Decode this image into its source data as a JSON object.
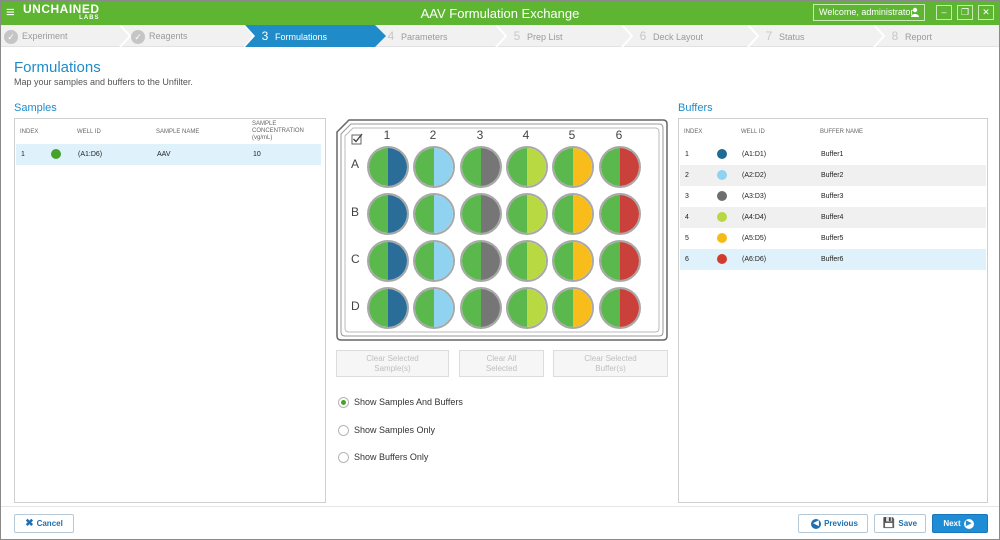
{
  "app": {
    "brand": "UNCHAINED",
    "brand_sub": "LABS",
    "window_title": "AAV Formulation Exchange",
    "welcome": "Welcome, administrator",
    "accent": "#5db532"
  },
  "steps": [
    {
      "num": "",
      "label": "Experiment",
      "state": "done"
    },
    {
      "num": "",
      "label": "Reagents",
      "state": "done"
    },
    {
      "num": "3",
      "label": "Formulations",
      "state": "active"
    },
    {
      "num": "4",
      "label": "Parameters",
      "state": "todo"
    },
    {
      "num": "5",
      "label": "Prep List",
      "state": "todo"
    },
    {
      "num": "6",
      "label": "Deck Layout",
      "state": "todo"
    },
    {
      "num": "7",
      "label": "Status",
      "state": "todo"
    },
    {
      "num": "8",
      "label": "Report",
      "state": "todo"
    }
  ],
  "header": {
    "title": "Formulations",
    "subtitle": "Map your samples and buffers to the Unfilter."
  },
  "samples": {
    "title": "Samples",
    "headers": {
      "index": "INDEX",
      "well": "WELL ID",
      "name": "SAMPLE NAME",
      "conc1": "SAMPLE",
      "conc2": "CONCENTRATION",
      "conc3": "(vg/mL)"
    },
    "rows": [
      {
        "index": "1",
        "color": "#46a229",
        "well": "(A1:D6)",
        "name": "AAV",
        "conc": "10"
      }
    ]
  },
  "buffers": {
    "title": "Buffers",
    "headers": {
      "index": "INDEX",
      "well": "WELL ID",
      "name": "BUFFER NAME"
    },
    "rows": [
      {
        "index": "1",
        "color": "#1e6b96",
        "well": "(A1:D1)",
        "name": "Buffer1"
      },
      {
        "index": "2",
        "color": "#8fd3f0",
        "well": "(A2:D2)",
        "name": "Buffer2"
      },
      {
        "index": "3",
        "color": "#6e6e6e",
        "well": "(A3:D3)",
        "name": "Buffer3"
      },
      {
        "index": "4",
        "color": "#b7d843",
        "well": "(A4:D4)",
        "name": "Buffer4"
      },
      {
        "index": "5",
        "color": "#f7bb17",
        "well": "(A5:D5)",
        "name": "Buffer5"
      },
      {
        "index": "6",
        "color": "#d23c2c",
        "well": "(A6:D6)",
        "name": "Buffer6"
      }
    ]
  },
  "plate": {
    "columns": [
      "1",
      "2",
      "3",
      "4",
      "5",
      "6"
    ],
    "rows": [
      "A",
      "B",
      "C",
      "D"
    ],
    "sample_color": "#5bb84c",
    "column_buffer_colors": [
      "#2a6d98",
      "#8fd3f0",
      "#767676",
      "#b9d943",
      "#f8bd1a",
      "#c9413a"
    ]
  },
  "actions": {
    "clear_samples": [
      "Clear Selected",
      "Sample(s)"
    ],
    "clear_all": [
      "Clear All",
      "Selected"
    ],
    "clear_buffers": [
      "Clear Selected",
      "Buffer(s)"
    ]
  },
  "view_options": {
    "both": "Show Samples And Buffers",
    "samples_only": "Show Samples Only",
    "buffers_only": "Show Buffers Only",
    "selected": "both"
  },
  "footer": {
    "cancel": "Cancel",
    "previous": "Previous",
    "save": "Save",
    "next": "Next"
  }
}
